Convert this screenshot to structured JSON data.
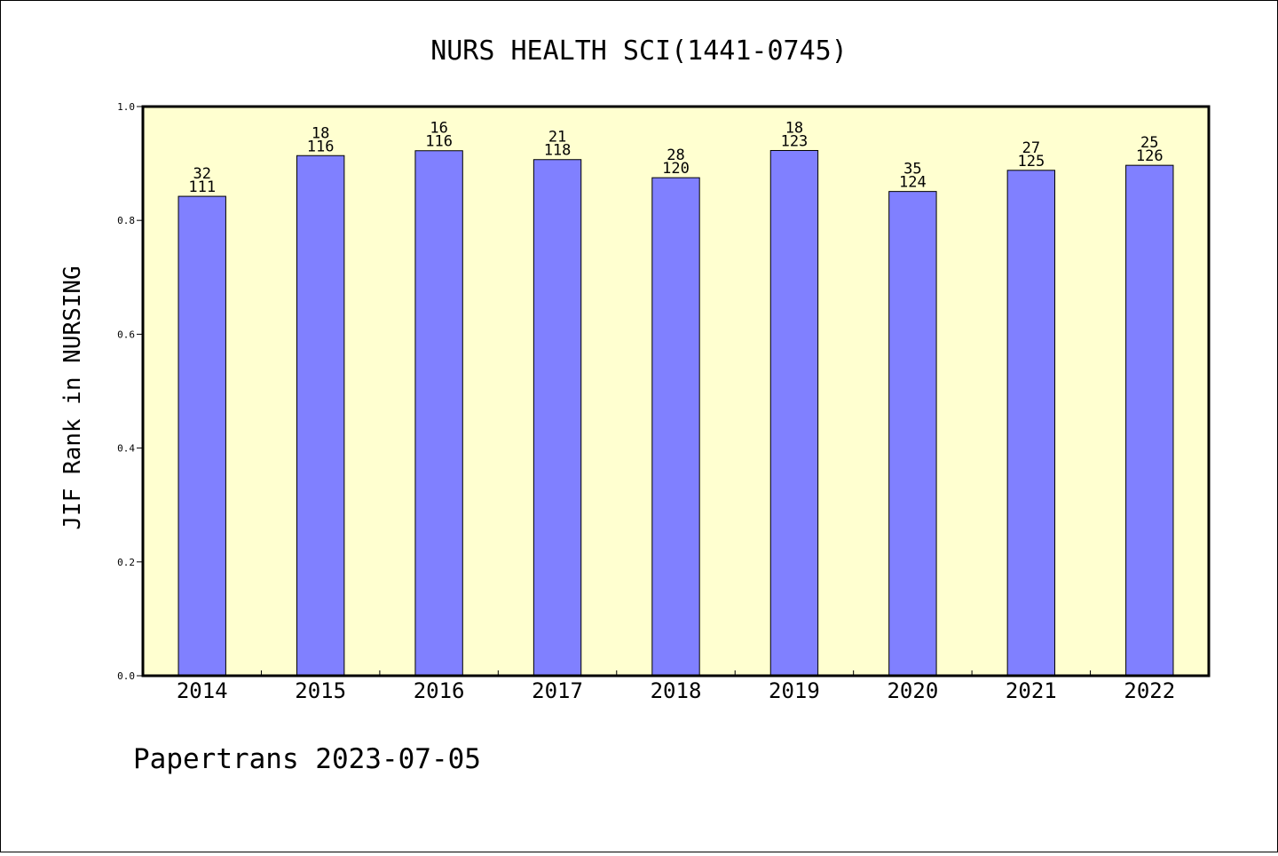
{
  "chart_data": {
    "type": "bar",
    "title": "NURS HEALTH SCI(1441-0745)",
    "ylabel": "JIF Rank in NURSING",
    "xlabel": "",
    "ylim": [
      0.0,
      1.0
    ],
    "yticks": [
      "0.0",
      "0.2",
      "0.4",
      "0.6",
      "0.8",
      "1.0"
    ],
    "categories": [
      "2014",
      "2015",
      "2016",
      "2017",
      "2018",
      "2019",
      "2020",
      "2021",
      "2022"
    ],
    "values": [
      0.8423,
      0.9138,
      0.9224,
      0.9068,
      0.875,
      0.9228,
      0.8508,
      0.888,
      0.8968
    ],
    "rank": [
      32,
      18,
      16,
      21,
      28,
      18,
      35,
      27,
      25
    ],
    "total": [
      111,
      116,
      116,
      118,
      120,
      123,
      124,
      125,
      126
    ],
    "grid": false,
    "colors": {
      "plot_background": "#ffffd0",
      "bar": "#8080ff",
      "bar_edge": "#000000"
    }
  },
  "footer": "Papertrans 2023-07-05"
}
